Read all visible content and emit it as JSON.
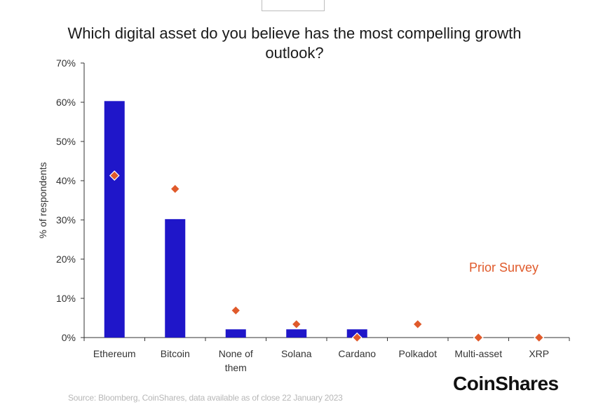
{
  "chart_data": {
    "type": "bar",
    "title": "Which digital asset do you believe has the most compelling growth outlook?",
    "ylabel": "% of respondents",
    "xlabel": "",
    "ylim": [
      0,
      70
    ],
    "yticks": [
      "0%",
      "10%",
      "20%",
      "30%",
      "40%",
      "50%",
      "60%",
      "70%"
    ],
    "ytick_values": [
      0,
      10,
      20,
      30,
      40,
      50,
      60,
      70
    ],
    "categories": [
      "Ethereum",
      "Bitcoin",
      "None of them",
      "Solana",
      "Cardano",
      "Polkadot",
      "Multi-asset",
      "XRP"
    ],
    "category_lines": [
      [
        "Ethereum"
      ],
      [
        "Bitcoin"
      ],
      [
        "None of",
        "them"
      ],
      [
        "Solana"
      ],
      [
        "Cardano"
      ],
      [
        "Polkadot"
      ],
      [
        "Multi-asset"
      ],
      [
        "XRP"
      ]
    ],
    "series": [
      {
        "values": [
          60.3,
          30.2,
          2.1,
          2.1,
          2.1,
          0,
          0,
          0
        ],
        "color": "#1f16c9",
        "marker": "bar"
      },
      {
        "name": "Prior Survey",
        "values": [
          41.3,
          37.9,
          6.9,
          3.4,
          0,
          3.4,
          0,
          0
        ],
        "color": "#e05a2b",
        "marker": "diamond"
      }
    ],
    "legend": {
      "label": "Prior Survey",
      "placement": "right"
    },
    "grid": false
  },
  "source": "Source: Bloomberg, CoinShares, data available as of close 22 January 2023",
  "logo_text": "CoinShares"
}
